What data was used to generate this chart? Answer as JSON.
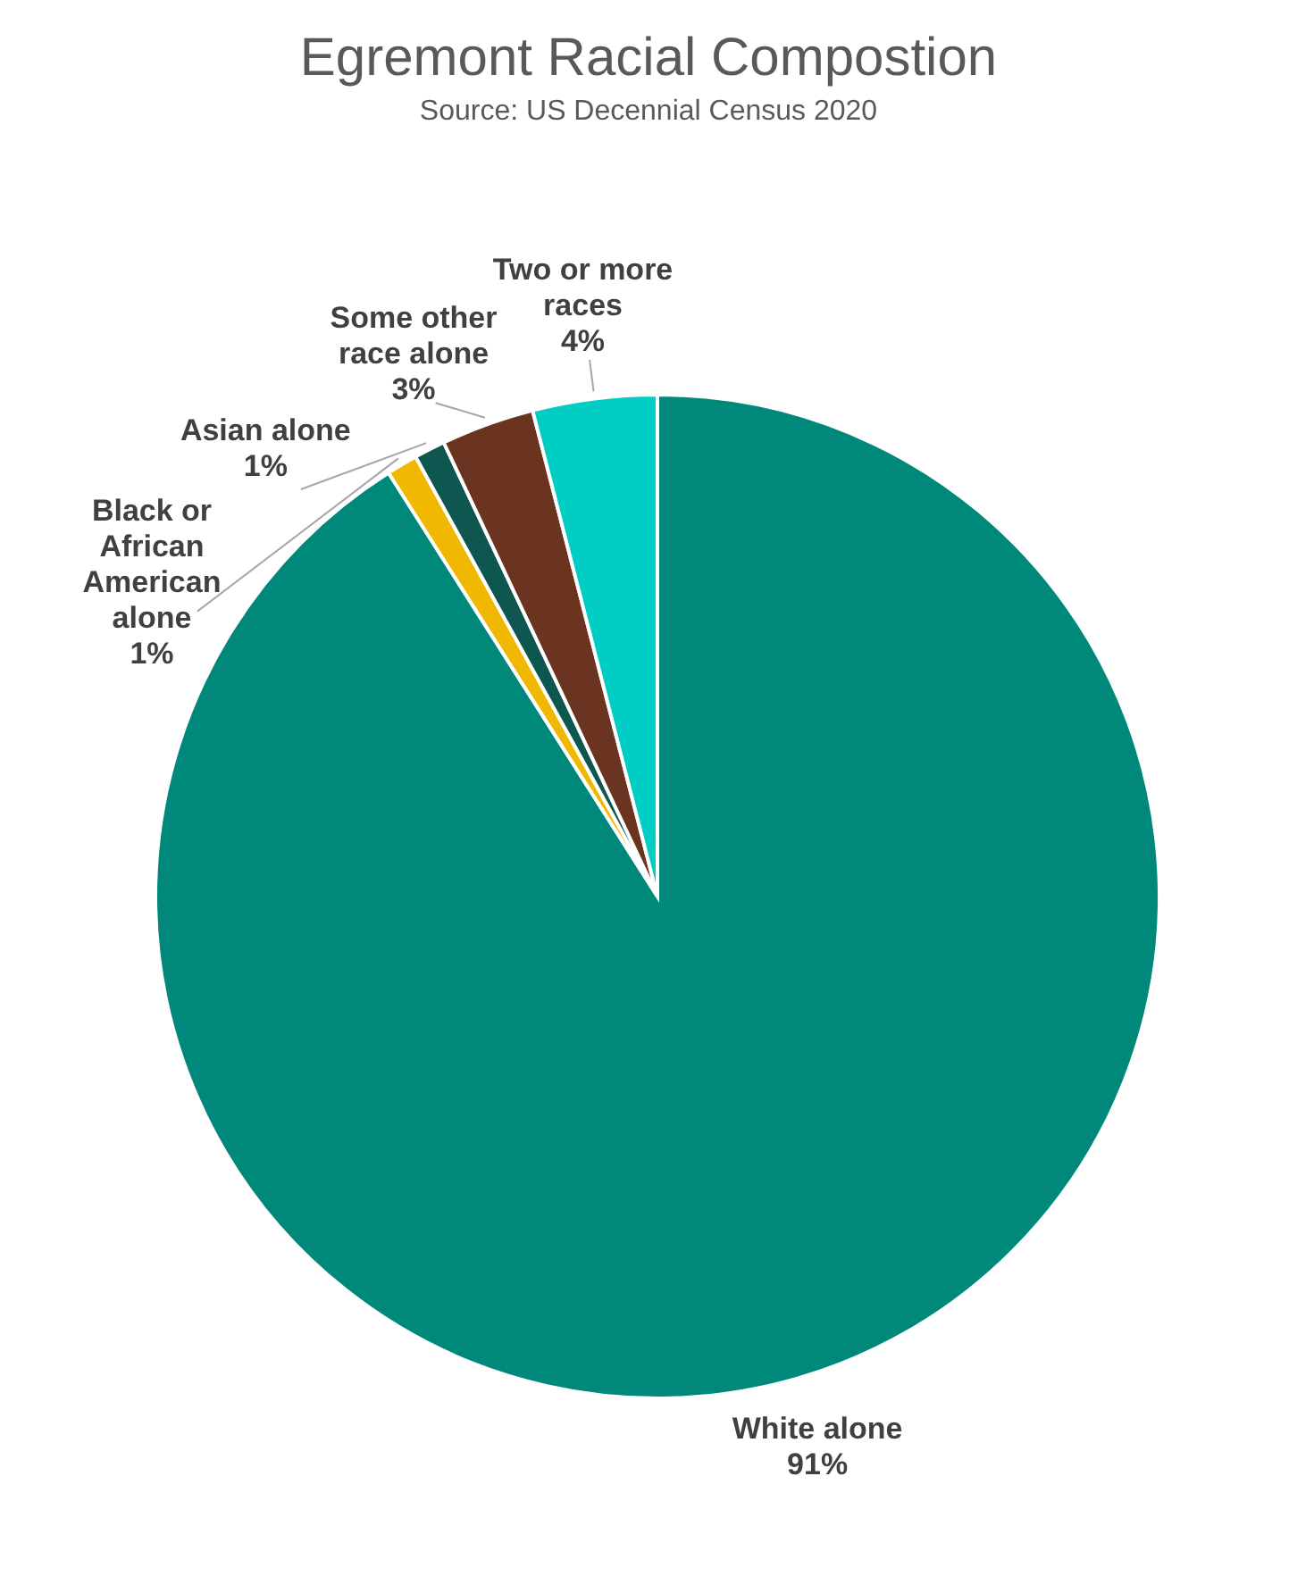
{
  "chart_data": {
    "type": "pie",
    "title": "Egremont Racial Compostion",
    "subtitle": "Source: US Decennial Census 2020",
    "categories": [
      "White alone",
      "Black or African American alone",
      "Asian alone",
      "Some other race alone",
      "Two or more races"
    ],
    "values": [
      91,
      1,
      1,
      3,
      4
    ],
    "value_labels": [
      "91%",
      "1%",
      "1%",
      "3%",
      "4%"
    ],
    "colors": [
      "#00897b",
      "#f0b800",
      "#0e5650",
      "#6b3420",
      "#00cdc4"
    ],
    "legend": false
  }
}
